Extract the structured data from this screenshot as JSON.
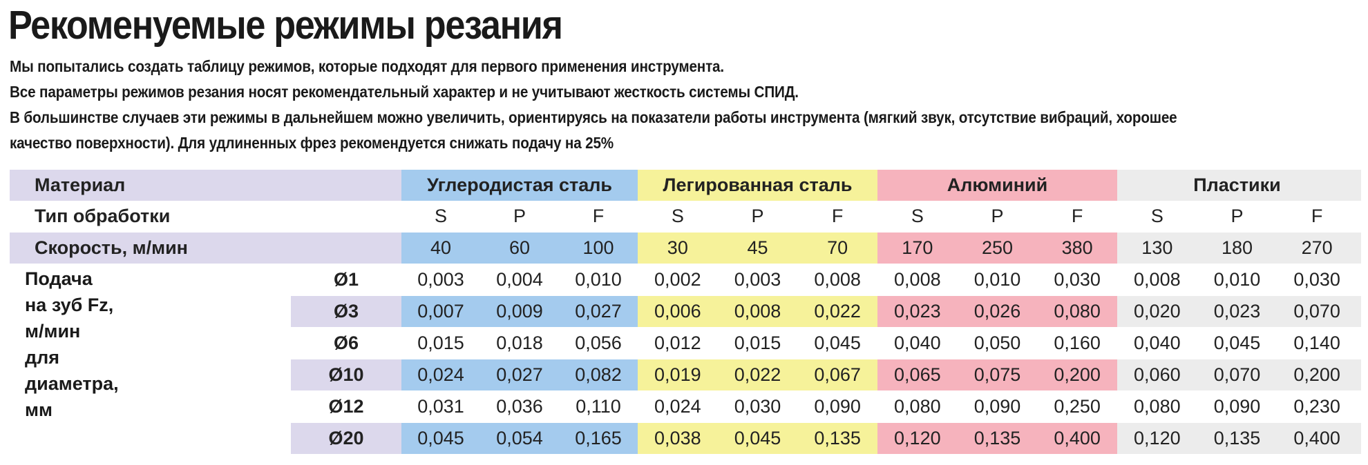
{
  "title": "Рекоменуемые режимы резания",
  "intro": [
    "Мы попытались создать таблицу режимов, которые подходят для первого применения инструмента.",
    "Все параметры режимов резания носят рекомендательный характер и не учитывают жесткость системы СПИД.",
    "В большинстве случаев эти режимы в дальнейшем можно увеличить, ориентируясь на показатели работы инструмента (мягкий звук, отсутствие вибраций, хорошее",
    "качество поверхности). Для удлиненных фрез рекомендуется снижать подачу на 25%"
  ],
  "colors": {
    "label_row": "#dcd8ec",
    "carbon": "#a4cbee",
    "alloy": "#f6f29a",
    "aluminum": "#f6b3bd",
    "plastic": "#ececec"
  },
  "table": {
    "material_label": "Материал",
    "process_label": "Тип обработки",
    "speed_label": "Скорость, м/мин",
    "feed_label_line1": "Подача на зуб Fz, м/мин",
    "feed_label_line2": "для диаметра, мм",
    "materials": [
      {
        "name": "Углеродистая сталь",
        "color_key": "carbon"
      },
      {
        "name": "Легированная сталь",
        "color_key": "alloy"
      },
      {
        "name": "Алюминий",
        "color_key": "aluminum"
      },
      {
        "name": "Пластики",
        "color_key": "plastic"
      }
    ],
    "process_types": [
      "S",
      "P",
      "F",
      "S",
      "P",
      "F",
      "S",
      "P",
      "F",
      "S",
      "P",
      "F"
    ],
    "speeds": [
      "40",
      "60",
      "100",
      "30",
      "45",
      "70",
      "170",
      "250",
      "380",
      "130",
      "180",
      "270"
    ],
    "rows": [
      {
        "diameter": "Ø1",
        "values": [
          "0,003",
          "0,004",
          "0,010",
          "0,002",
          "0,003",
          "0,008",
          "0,008",
          "0,010",
          "0,030",
          "0,008",
          "0,010",
          "0,030"
        ]
      },
      {
        "diameter": "Ø3",
        "values": [
          "0,007",
          "0,009",
          "0,027",
          "0,006",
          "0,008",
          "0,022",
          "0,023",
          "0,026",
          "0,080",
          "0,020",
          "0,023",
          "0,070"
        ]
      },
      {
        "diameter": "Ø6",
        "values": [
          "0,015",
          "0,018",
          "0,056",
          "0,012",
          "0,015",
          "0,045",
          "0,040",
          "0,050",
          "0,160",
          "0,040",
          "0,045",
          "0,140"
        ]
      },
      {
        "diameter": "Ø10",
        "values": [
          "0,024",
          "0,027",
          "0,082",
          "0,019",
          "0,022",
          "0,067",
          "0,065",
          "0,075",
          "0,200",
          "0,060",
          "0,070",
          "0,200"
        ]
      },
      {
        "diameter": "Ø12",
        "values": [
          "0,031",
          "0,036",
          "0,110",
          "0,024",
          "0,030",
          "0,090",
          "0,080",
          "0,090",
          "0,250",
          "0,080",
          "0,090",
          "0,230"
        ]
      },
      {
        "diameter": "Ø20",
        "values": [
          "0,045",
          "0,054",
          "0,165",
          "0,038",
          "0,045",
          "0,135",
          "0,120",
          "0,135",
          "0,400",
          "0,120",
          "0,135",
          "0,400"
        ]
      }
    ]
  }
}
